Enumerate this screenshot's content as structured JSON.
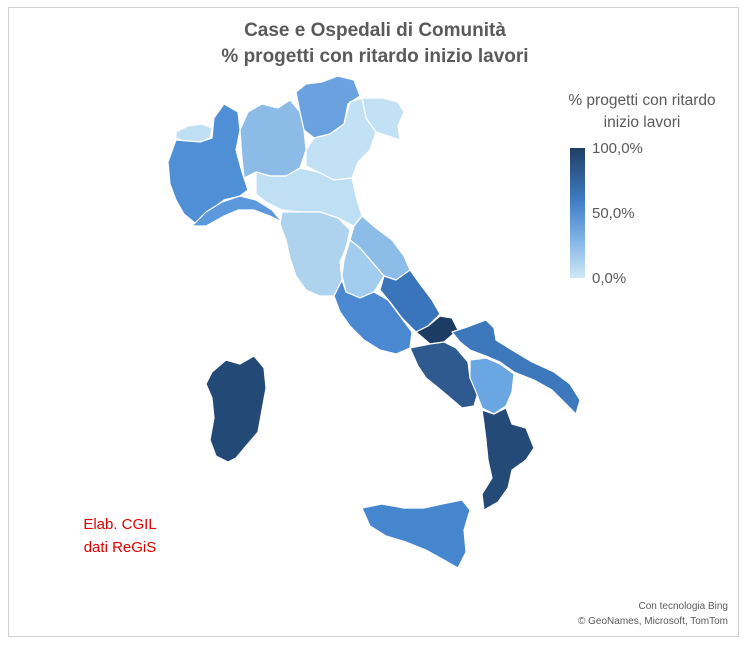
{
  "title": {
    "line1": "Case e Ospedali di Comunità",
    "line2": "% progetti con ritardo inizio lavori"
  },
  "legend": {
    "title_line1": "% progetti con ritardo",
    "title_line2": "inizio lavori",
    "max_label": "100,0%",
    "mid_label": "50,0%",
    "min_label": "0,0%",
    "color_max": "#1f3e64",
    "color_mid": "#3f7cc4",
    "color_min": "#cfe8f7"
  },
  "credit": {
    "line1": "Elab. CGIL",
    "line2": "dati ReGiS"
  },
  "attribution": {
    "line1": "Con tecnologia Bing",
    "line2": "© GeoNames, Microsoft, TomTom"
  },
  "regions": [
    {
      "name": "Valle d'Aosta",
      "color": "#bfe0f4"
    },
    {
      "name": "Piemonte",
      "color": "#4f8fd6"
    },
    {
      "name": "Lombardia",
      "color": "#8dbbe8"
    },
    {
      "name": "Trentino-Alto Adige",
      "color": "#6aa2e0"
    },
    {
      "name": "Veneto",
      "color": "#c2e1f5"
    },
    {
      "name": "Friuli-Venezia Giulia",
      "color": "#c2e1f5"
    },
    {
      "name": "Liguria",
      "color": "#5b98dc"
    },
    {
      "name": "Emilia-Romagna",
      "color": "#bfe0f4"
    },
    {
      "name": "Toscana",
      "color": "#aed3ef"
    },
    {
      "name": "Umbria",
      "color": "#a3cdef"
    },
    {
      "name": "Marche",
      "color": "#8cbde9"
    },
    {
      "name": "Lazio",
      "color": "#4a89d2"
    },
    {
      "name": "Abruzzo",
      "color": "#3a74ba"
    },
    {
      "name": "Molise",
      "color": "#1d3c63"
    },
    {
      "name": "Campania",
      "color": "#2e5a8f"
    },
    {
      "name": "Puglia",
      "color": "#3d78bd"
    },
    {
      "name": "Basilicata",
      "color": "#6aa7e2"
    },
    {
      "name": "Calabria",
      "color": "#244a78"
    },
    {
      "name": "Sicilia",
      "color": "#4686cf"
    },
    {
      "name": "Sardegna",
      "color": "#234a77"
    }
  ]
}
